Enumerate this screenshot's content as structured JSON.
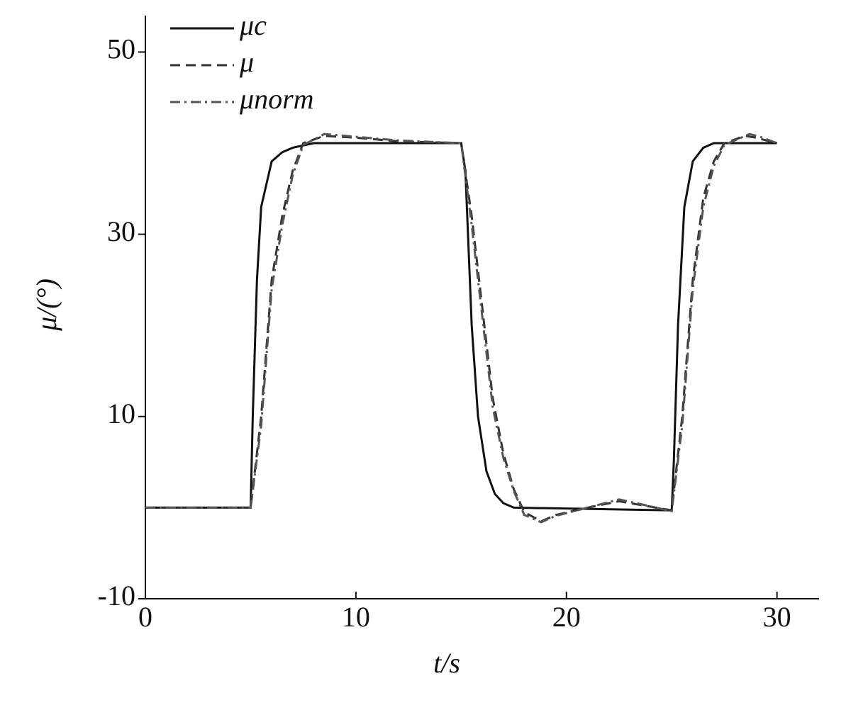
{
  "chart_data": {
    "type": "line",
    "x_label": "t/s",
    "y_label": "μ/(°)",
    "xlim": [
      0,
      32
    ],
    "ylim": [
      -10,
      54
    ],
    "xticks": [
      0,
      10,
      20,
      30
    ],
    "yticks": [
      -10,
      10,
      30,
      50
    ],
    "legend": "top-left",
    "series": [
      {
        "name": "μc",
        "color": "#111111",
        "dash": "solid",
        "x": [
          0,
          5,
          5.1,
          5.3,
          5.5,
          6,
          6.5,
          7,
          8,
          15,
          15.2,
          15.5,
          15.8,
          16.2,
          16.6,
          17,
          17.5,
          25,
          25.1,
          25.3,
          25.6,
          26,
          26.5,
          27,
          30
        ],
        "values": [
          0,
          0,
          10,
          25,
          33,
          38,
          39,
          39.5,
          40,
          40,
          37,
          20,
          10,
          4,
          1.5,
          0.5,
          0,
          -0.3,
          5,
          20,
          33,
          38,
          39.5,
          40,
          40
        ]
      },
      {
        "name": "μ",
        "color": "#333333",
        "dash": "dashed",
        "x": [
          0,
          5,
          5.5,
          6,
          6.5,
          7,
          7.5,
          8.5,
          10,
          12,
          15,
          15.5,
          16,
          16.5,
          17,
          17.5,
          18,
          18.8,
          19.5,
          21,
          22.5,
          23.5,
          25,
          25.5,
          26,
          26.5,
          27,
          27.5,
          28.5,
          29,
          30
        ],
        "values": [
          0,
          0,
          10,
          25,
          32,
          37,
          40,
          40.8,
          40.6,
          40.2,
          40,
          32,
          22,
          12,
          6,
          2,
          -0.5,
          -1.5,
          -0.8,
          0,
          0.7,
          0.3,
          -0.3,
          10,
          25,
          34,
          38,
          40,
          40.8,
          40.6,
          40
        ]
      },
      {
        "name": "μnorm",
        "color": "#555555",
        "dash": "dashdot",
        "x": [
          0,
          5,
          5.5,
          6,
          6.5,
          7,
          7.5,
          8.5,
          10,
          12,
          15,
          15.5,
          16,
          16.5,
          17,
          17.5,
          18,
          18.8,
          19.5,
          21,
          22.5,
          23.5,
          25,
          25.5,
          26,
          26.5,
          27,
          27.5,
          28.7,
          29.2,
          30
        ],
        "values": [
          0,
          0,
          9,
          24,
          31,
          36.5,
          39.8,
          41,
          40.7,
          40.3,
          40,
          31,
          21,
          11,
          5.5,
          1.8,
          -0.8,
          -1.6,
          -0.9,
          0,
          0.9,
          0.4,
          -0.4,
          9,
          24,
          33,
          37.5,
          39.8,
          41,
          40.7,
          40
        ]
      }
    ]
  }
}
